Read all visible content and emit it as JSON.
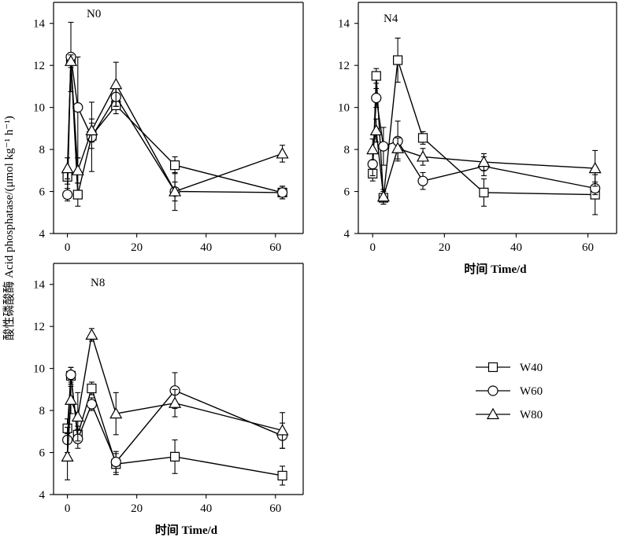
{
  "figure": {
    "y_label": "酸性磷酸酶 Acid phosphatase/(μmol kg⁻¹ h⁻¹)",
    "x_label": "时间 Time/d",
    "legend": [
      {
        "name": "W40",
        "marker": "square"
      },
      {
        "name": "W60",
        "marker": "circle"
      },
      {
        "name": "W80",
        "marker": "triangle"
      }
    ]
  },
  "chart_data": [
    {
      "type": "line",
      "panel_label": "N0",
      "xlim": [
        -4,
        68
      ],
      "ylim": [
        4,
        15
      ],
      "x_ticks": [
        0,
        20,
        40,
        60
      ],
      "y_ticks": [
        4,
        6,
        8,
        10,
        12,
        14
      ],
      "x_tick_labels": [
        "0",
        "20",
        "40",
        "60"
      ],
      "y_tick_labels": [
        "4",
        "6",
        "8",
        "10",
        "12",
        "14"
      ],
      "xlabel": "",
      "series": [
        {
          "name": "W40",
          "marker": "square",
          "x": [
            0,
            1,
            3,
            7,
            14,
            31,
            62
          ],
          "y": [
            6.7,
            12.3,
            5.85,
            8.65,
            10.1,
            7.25,
            5.95
          ],
          "err": [
            0.35,
            0.3,
            0.55,
            0.6,
            0.4,
            0.4,
            0.3
          ]
        },
        {
          "name": "W60",
          "marker": "circle",
          "x": [
            0,
            1,
            3,
            7,
            14,
            31,
            62
          ],
          "y": [
            5.85,
            12.4,
            10.0,
            8.6,
            10.5,
            6.0,
            5.95
          ],
          "err": [
            0.3,
            1.65,
            2.4,
            1.65,
            0.45,
            0.9,
            0.3
          ]
        },
        {
          "name": "W80",
          "marker": "triangle",
          "x": [
            0,
            1,
            3,
            7,
            14,
            31,
            62
          ],
          "y": [
            7.1,
            12.2,
            7.0,
            8.9,
            11.1,
            6.0,
            7.8
          ],
          "err": [
            0.5,
            0.3,
            0.6,
            0.55,
            1.05,
            0.45,
            0.4
          ]
        }
      ]
    },
    {
      "type": "line",
      "panel_label": "N4",
      "xlim": [
        -4,
        68
      ],
      "ylim": [
        4,
        15
      ],
      "x_ticks": [
        0,
        20,
        40,
        60
      ],
      "y_ticks": [
        4,
        6,
        8,
        10,
        12,
        14
      ],
      "x_tick_labels": [
        "0",
        "20",
        "40",
        "60"
      ],
      "y_tick_labels": [
        "4",
        "6",
        "8",
        "10",
        "12",
        "14"
      ],
      "xlabel": "时间 Time/d",
      "series": [
        {
          "name": "W40",
          "marker": "square",
          "x": [
            0,
            1,
            3,
            7,
            14,
            31,
            62
          ],
          "y": [
            6.85,
            11.5,
            5.7,
            12.25,
            8.55,
            5.95,
            5.85
          ],
          "err": [
            0.35,
            0.35,
            0.3,
            1.05,
            0.3,
            0.65,
            0.95
          ]
        },
        {
          "name": "W60",
          "marker": "circle",
          "x": [
            0,
            1,
            3,
            7,
            14,
            31,
            62
          ],
          "y": [
            7.3,
            10.45,
            8.15,
            8.4,
            6.5,
            7.2,
            6.15
          ],
          "err": [
            0.55,
            0.45,
            0.9,
            0.95,
            0.4,
            0.45,
            0.3
          ]
        },
        {
          "name": "W80",
          "marker": "triangle",
          "x": [
            0,
            1,
            3,
            7,
            14,
            31,
            62
          ],
          "y": [
            8.0,
            8.9,
            5.75,
            8.05,
            7.65,
            7.4,
            7.1
          ],
          "err": [
            0.5,
            0.55,
            0.35,
            0.5,
            0.4,
            0.4,
            0.85
          ]
        }
      ]
    },
    {
      "type": "line",
      "panel_label": "N8",
      "xlim": [
        -4,
        68
      ],
      "ylim": [
        4,
        15
      ],
      "x_ticks": [
        0,
        20,
        40,
        60
      ],
      "y_ticks": [
        4,
        6,
        8,
        10,
        12,
        14
      ],
      "x_tick_labels": [
        "0",
        "20",
        "40",
        "60"
      ],
      "y_tick_labels": [
        "4",
        "6",
        "8",
        "10",
        "12",
        "14"
      ],
      "xlabel": "时间 Time/d",
      "series": [
        {
          "name": "W40",
          "marker": "square",
          "x": [
            0,
            1,
            3,
            7,
            14,
            31,
            62
          ],
          "y": [
            7.15,
            9.65,
            6.85,
            9.05,
            5.45,
            5.8,
            4.9
          ],
          "err": [
            0.45,
            0.4,
            0.4,
            0.3,
            0.5,
            0.8,
            0.45
          ]
        },
        {
          "name": "W60",
          "marker": "circle",
          "x": [
            0,
            1,
            3,
            7,
            14,
            31,
            62
          ],
          "y": [
            6.6,
            9.7,
            6.65,
            8.3,
            5.55,
            8.95,
            6.8
          ],
          "err": [
            0.6,
            0.35,
            0.45,
            0.3,
            0.5,
            0.85,
            0.6
          ]
        },
        {
          "name": "W80",
          "marker": "triangle",
          "x": [
            0,
            1,
            3,
            7,
            14,
            31,
            62
          ],
          "y": [
            5.8,
            8.5,
            7.7,
            11.6,
            7.85,
            8.35,
            7.05
          ],
          "err": [
            1.1,
            0.65,
            1.15,
            0.3,
            1.0,
            0.65,
            0.85
          ]
        }
      ]
    }
  ]
}
